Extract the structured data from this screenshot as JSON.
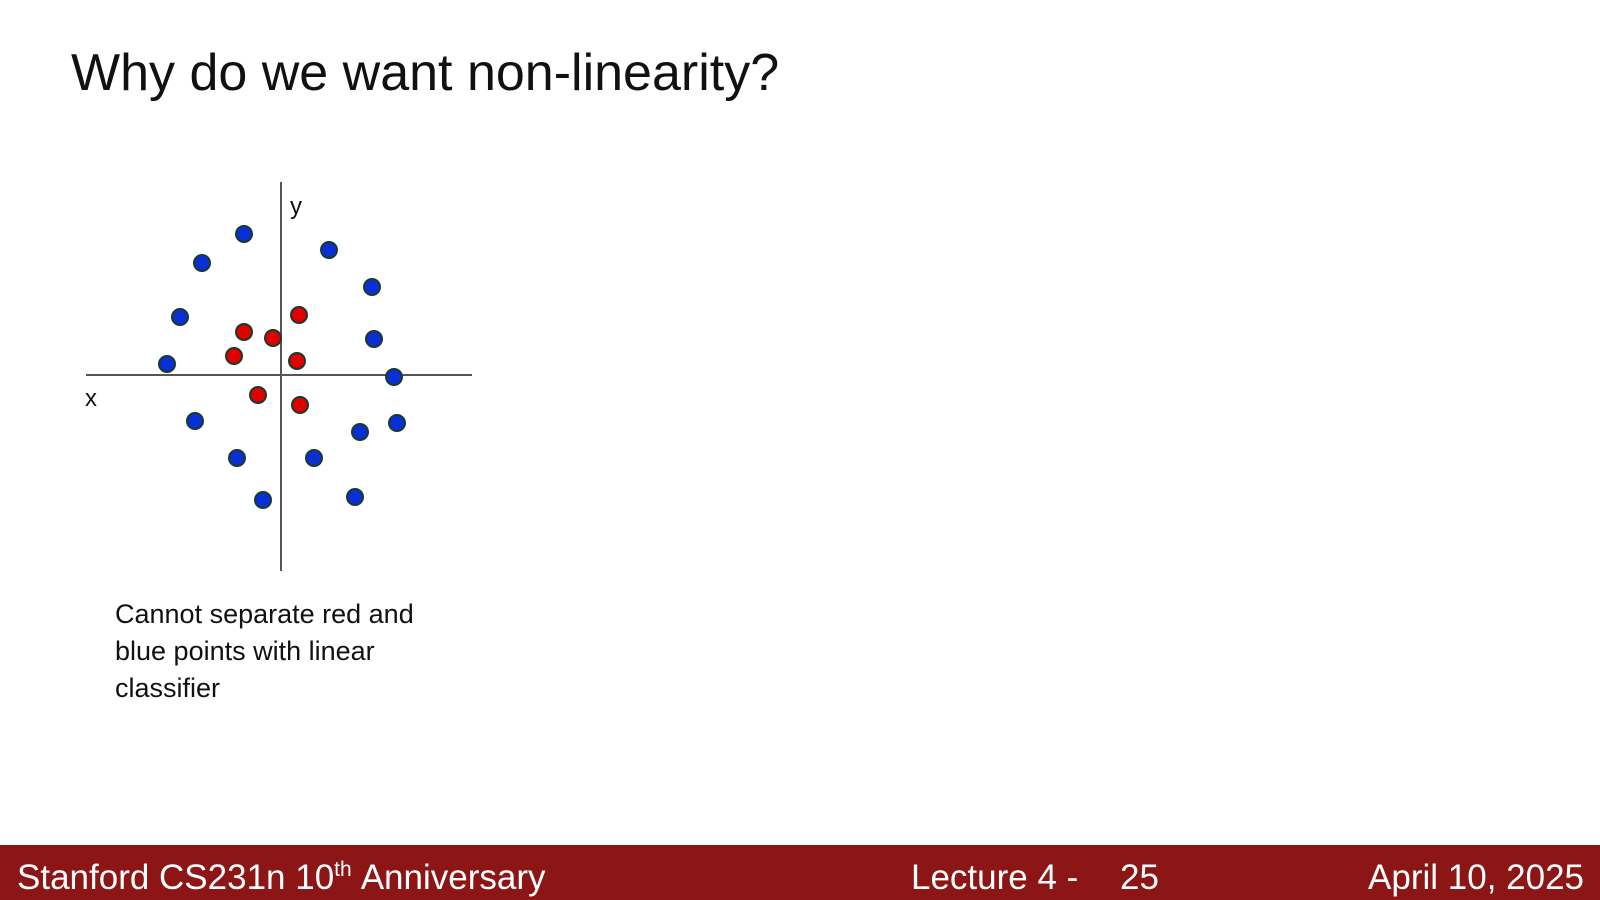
{
  "header": {
    "title": "Why do we want non-linearity?"
  },
  "figure": {
    "y_axis_label": "y",
    "x_axis_label": "x"
  },
  "caption": {
    "lines": [
      "Cannot separate red and",
      "blue points with linear",
      "classifier"
    ]
  },
  "footer": {
    "course": {
      "main": "Stanford CS231n 10",
      "superscript": "th",
      "rest": "Anniversary"
    },
    "lecture": "Lecture 4 -",
    "page": "25",
    "date": "April 10, 2025"
  }
}
